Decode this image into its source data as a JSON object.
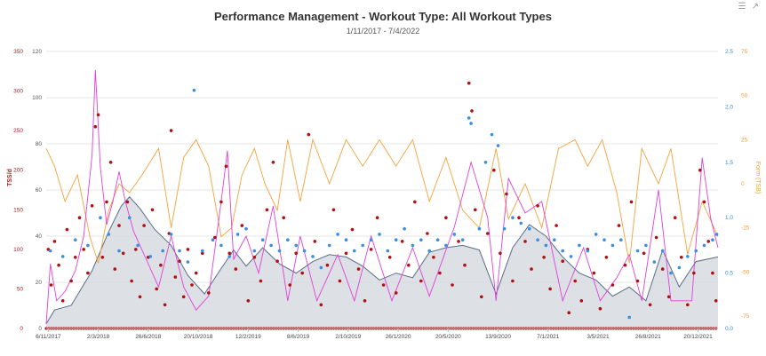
{
  "header": {
    "title": "Performance Management - Workout Type: All Workout Types",
    "subtitle": "1/11/2017 - 7/4/2022",
    "menu_icon": "hamburger-menu-icon",
    "expand_icon": "expand-icon"
  },
  "chart_data": {
    "type": "line",
    "title": "Performance Management - Workout Type: All Workout Types",
    "subtitle": "1/11/2017 - 7/4/2022",
    "x_ticks": [
      "6/11/2017",
      "2/3/2018",
      "26/6/2018",
      "20/10/2018",
      "12/2/2019",
      "8/6/2019",
      "2/10/2019",
      "26/1/2020",
      "20/5/2020",
      "13/9/2020",
      "7/1/2021",
      "3/5/2021",
      "26/8/2021",
      "20/12/2021"
    ],
    "axes": {
      "tss": {
        "label": "TSS/d",
        "min": 0,
        "max": 350,
        "ticks": [
          0,
          50,
          100,
          150,
          200,
          250,
          300,
          350
        ],
        "color": "#b22222"
      },
      "fitness": {
        "label": "",
        "min": 0,
        "max": 120,
        "ticks": [
          0,
          20,
          40,
          60,
          80,
          100,
          120
        ],
        "color": "#555555"
      },
      "if": {
        "label": "",
        "min": 0,
        "max": 2.5,
        "ticks": [
          "0.0",
          "0.5",
          "1.0",
          "1.5",
          "2.0",
          "2.5"
        ],
        "color": "#3b8fe0"
      },
      "form": {
        "label": "Form (TSB)",
        "min": -82,
        "max": 75,
        "ticks": [
          -75,
          -50,
          -25,
          0,
          25,
          50,
          75
        ],
        "color": "#f0a030"
      }
    },
    "series": [
      {
        "key": "tss",
        "kind": "scatter",
        "color": "#b01010"
      },
      {
        "key": "if",
        "kind": "scatter",
        "color": "#3b8fe0"
      },
      {
        "key": "form",
        "kind": "line",
        "color": "#f3a33a"
      },
      {
        "key": "fatigue",
        "kind": "line",
        "color": "#e040d8"
      },
      {
        "key": "fitness",
        "kind": "area",
        "color": "#5b6e8a",
        "fill": "#d2d6dc"
      }
    ],
    "grid": true,
    "legend": "none",
    "n_days": 1613,
    "values": {
      "fitness": [
        [
          0,
          2
        ],
        [
          20,
          8
        ],
        [
          60,
          10
        ],
        [
          110,
          25
        ],
        [
          150,
          42
        ],
        [
          180,
          53
        ],
        [
          200,
          57
        ],
        [
          225,
          52
        ],
        [
          260,
          43
        ],
        [
          300,
          36
        ],
        [
          340,
          23
        ],
        [
          380,
          15
        ],
        [
          420,
          26
        ],
        [
          450,
          34
        ],
        [
          480,
          27
        ],
        [
          520,
          35
        ],
        [
          560,
          28
        ],
        [
          600,
          24
        ],
        [
          640,
          29
        ],
        [
          680,
          32
        ],
        [
          720,
          31
        ],
        [
          760,
          27
        ],
        [
          800,
          21
        ],
        [
          840,
          24
        ],
        [
          880,
          22
        ],
        [
          920,
          33
        ],
        [
          960,
          35
        ],
        [
          1000,
          36
        ],
        [
          1040,
          34
        ],
        [
          1080,
          15
        ],
        [
          1120,
          35
        ],
        [
          1160,
          45
        ],
        [
          1200,
          40
        ],
        [
          1240,
          31
        ],
        [
          1280,
          24
        ],
        [
          1320,
          21
        ],
        [
          1360,
          14
        ],
        [
          1400,
          18
        ],
        [
          1440,
          12
        ],
        [
          1480,
          34
        ],
        [
          1520,
          18
        ],
        [
          1560,
          29
        ],
        [
          1613,
          31
        ]
      ],
      "fatigue": [
        [
          0,
          2
        ],
        [
          10,
          28
        ],
        [
          25,
          12
        ],
        [
          45,
          16
        ],
        [
          70,
          25
        ],
        [
          90,
          40
        ],
        [
          110,
          75
        ],
        [
          118,
          112
        ],
        [
          130,
          70
        ],
        [
          145,
          45
        ],
        [
          160,
          55
        ],
        [
          175,
          68
        ],
        [
          190,
          55
        ],
        [
          210,
          42
        ],
        [
          240,
          30
        ],
        [
          270,
          18
        ],
        [
          300,
          40
        ],
        [
          330,
          18
        ],
        [
          360,
          8
        ],
        [
          390,
          14
        ],
        [
          420,
          55
        ],
        [
          435,
          77
        ],
        [
          450,
          30
        ],
        [
          480,
          40
        ],
        [
          510,
          24
        ],
        [
          545,
          53
        ],
        [
          580,
          12
        ],
        [
          610,
          40
        ],
        [
          650,
          12
        ],
        [
          700,
          32
        ],
        [
          740,
          12
        ],
        [
          780,
          40
        ],
        [
          830,
          12
        ],
        [
          880,
          35
        ],
        [
          920,
          14
        ],
        [
          980,
          44
        ],
        [
          1020,
          72
        ],
        [
          1060,
          48
        ],
        [
          1080,
          12
        ],
        [
          1110,
          65
        ],
        [
          1150,
          50
        ],
        [
          1190,
          55
        ],
        [
          1240,
          12
        ],
        [
          1290,
          35
        ],
        [
          1330,
          12
        ],
        [
          1370,
          22
        ],
        [
          1400,
          32
        ],
        [
          1430,
          12
        ],
        [
          1470,
          60
        ],
        [
          1500,
          12
        ],
        [
          1550,
          12
        ],
        [
          1575,
          74
        ],
        [
          1595,
          48
        ],
        [
          1613,
          35
        ]
      ],
      "form": [
        [
          0,
          20
        ],
        [
          20,
          10
        ],
        [
          45,
          -10
        ],
        [
          75,
          5
        ],
        [
          105,
          -30
        ],
        [
          125,
          -45
        ],
        [
          150,
          -15
        ],
        [
          175,
          0
        ],
        [
          200,
          -5
        ],
        [
          230,
          5
        ],
        [
          270,
          20
        ],
        [
          300,
          -25
        ],
        [
          330,
          15
        ],
        [
          360,
          25
        ],
        [
          390,
          10
        ],
        [
          420,
          -30
        ],
        [
          445,
          -25
        ],
        [
          470,
          5
        ],
        [
          500,
          20
        ],
        [
          525,
          0
        ],
        [
          555,
          -15
        ],
        [
          580,
          25
        ],
        [
          610,
          -10
        ],
        [
          640,
          25
        ],
        [
          680,
          0
        ],
        [
          720,
          25
        ],
        [
          760,
          10
        ],
        [
          800,
          25
        ],
        [
          840,
          10
        ],
        [
          880,
          25
        ],
        [
          920,
          -10
        ],
        [
          960,
          15
        ],
        [
          1000,
          -15
        ],
        [
          1040,
          -25
        ],
        [
          1080,
          20
        ],
        [
          1110,
          -20
        ],
        [
          1150,
          0
        ],
        [
          1190,
          -25
        ],
        [
          1230,
          20
        ],
        [
          1270,
          25
        ],
        [
          1300,
          10
        ],
        [
          1335,
          25
        ],
        [
          1370,
          -5
        ],
        [
          1400,
          -45
        ],
        [
          1430,
          20
        ],
        [
          1470,
          0
        ],
        [
          1500,
          20
        ],
        [
          1540,
          -40
        ],
        [
          1575,
          -10
        ],
        [
          1613,
          -30
        ]
      ],
      "tss": [
        [
          5,
          100
        ],
        [
          12,
          55
        ],
        [
          20,
          110
        ],
        [
          30,
          80
        ],
        [
          40,
          35
        ],
        [
          50,
          125
        ],
        [
          60,
          60
        ],
        [
          70,
          90
        ],
        [
          80,
          140
        ],
        [
          90,
          100
        ],
        [
          100,
          70
        ],
        [
          110,
          155
        ],
        [
          118,
          255
        ],
        [
          125,
          270
        ],
        [
          135,
          90
        ],
        [
          145,
          160
        ],
        [
          155,
          210
        ],
        [
          165,
          75
        ],
        [
          175,
          130
        ],
        [
          185,
          95
        ],
        [
          195,
          160
        ],
        [
          205,
          60
        ],
        [
          215,
          100
        ],
        [
          225,
          40
        ],
        [
          235,
          130
        ],
        [
          245,
          90
        ],
        [
          255,
          150
        ],
        [
          265,
          50
        ],
        [
          275,
          80
        ],
        [
          285,
          30
        ],
        [
          295,
          120
        ],
        [
          300,
          250
        ],
        [
          310,
          65
        ],
        [
          320,
          85
        ],
        [
          330,
          40
        ],
        [
          340,
          100
        ],
        [
          350,
          55
        ],
        [
          360,
          70
        ],
        [
          375,
          95
        ],
        [
          390,
          45
        ],
        [
          405,
          115
        ],
        [
          420,
          160
        ],
        [
          432,
          205
        ],
        [
          440,
          95
        ],
        [
          455,
          75
        ],
        [
          470,
          130
        ],
        [
          485,
          35
        ],
        [
          500,
          90
        ],
        [
          515,
          60
        ],
        [
          530,
          150
        ],
        [
          545,
          210
        ],
        [
          555,
          85
        ],
        [
          570,
          140
        ],
        [
          585,
          55
        ],
        [
          600,
          95
        ],
        [
          615,
          70
        ],
        [
          630,
          245
        ],
        [
          645,
          110
        ],
        [
          660,
          30
        ],
        [
          675,
          80
        ],
        [
          690,
          150
        ],
        [
          705,
          60
        ],
        [
          720,
          95
        ],
        [
          735,
          125
        ],
        [
          750,
          75
        ],
        [
          765,
          35
        ],
        [
          780,
          100
        ],
        [
          795,
          140
        ],
        [
          810,
          55
        ],
        [
          825,
          90
        ],
        [
          840,
          45
        ],
        [
          855,
          110
        ],
        [
          870,
          80
        ],
        [
          885,
          160
        ],
        [
          900,
          60
        ],
        [
          915,
          120
        ],
        [
          930,
          90
        ],
        [
          945,
          70
        ],
        [
          960,
          140
        ],
        [
          975,
          55
        ],
        [
          990,
          110
        ],
        [
          1005,
          80
        ],
        [
          1015,
          310
        ],
        [
          1022,
          275
        ],
        [
          1030,
          150
        ],
        [
          1045,
          40
        ],
        [
          1060,
          120
        ],
        [
          1075,
          200
        ],
        [
          1090,
          95
        ],
        [
          1105,
          170
        ],
        [
          1120,
          60
        ],
        [
          1135,
          140
        ],
        [
          1150,
          110
        ],
        [
          1165,
          75
        ],
        [
          1180,
          155
        ],
        [
          1195,
          90
        ],
        [
          1210,
          50
        ],
        [
          1225,
          130
        ],
        [
          1240,
          85
        ],
        [
          1255,
          20
        ],
        [
          1270,
          60
        ],
        [
          1285,
          35
        ],
        [
          1300,
          100
        ],
        [
          1315,
          70
        ],
        [
          1330,
          25
        ],
        [
          1345,
          90
        ],
        [
          1360,
          55
        ],
        [
          1375,
          130
        ],
        [
          1390,
          80
        ],
        [
          1405,
          160
        ],
        [
          1420,
          60
        ],
        [
          1435,
          95
        ],
        [
          1450,
          30
        ],
        [
          1465,
          115
        ],
        [
          1480,
          75
        ],
        [
          1495,
          40
        ],
        [
          1510,
          140
        ],
        [
          1525,
          90
        ],
        [
          1540,
          30
        ],
        [
          1555,
          70
        ],
        [
          1570,
          200
        ],
        [
          1580,
          160
        ],
        [
          1590,
          110
        ],
        [
          1600,
          70
        ],
        [
          1608,
          35
        ]
      ],
      "tss_zero_days_marked": true,
      "if": [
        [
          10,
          0.7
        ],
        [
          40,
          0.65
        ],
        [
          70,
          0.8
        ],
        [
          100,
          0.75
        ],
        [
          130,
          1.0
        ],
        [
          150,
          0.85
        ],
        [
          175,
          0.7
        ],
        [
          200,
          1.0
        ],
        [
          220,
          0.75
        ],
        [
          250,
          0.65
        ],
        [
          280,
          0.7
        ],
        [
          300,
          0.85
        ],
        [
          320,
          0.7
        ],
        [
          340,
          0.6
        ],
        [
          355,
          2.15
        ],
        [
          375,
          0.7
        ],
        [
          400,
          0.8
        ],
        [
          420,
          0.75
        ],
        [
          440,
          0.65
        ],
        [
          460,
          0.85
        ],
        [
          480,
          0.9
        ],
        [
          500,
          0.7
        ],
        [
          520,
          0.8
        ],
        [
          540,
          0.75
        ],
        [
          560,
          0.7
        ],
        [
          580,
          0.8
        ],
        [
          600,
          0.75
        ],
        [
          620,
          0.7
        ],
        [
          640,
          0.65
        ],
        [
          660,
          0.55
        ],
        [
          680,
          0.75
        ],
        [
          700,
          0.85
        ],
        [
          720,
          0.8
        ],
        [
          740,
          0.7
        ],
        [
          760,
          0.75
        ],
        [
          780,
          0.8
        ],
        [
          800,
          0.85
        ],
        [
          820,
          0.7
        ],
        [
          840,
          0.8
        ],
        [
          860,
          0.9
        ],
        [
          880,
          0.75
        ],
        [
          900,
          0.8
        ],
        [
          920,
          0.7
        ],
        [
          940,
          0.8
        ],
        [
          960,
          0.75
        ],
        [
          980,
          0.85
        ],
        [
          1000,
          0.8
        ],
        [
          1015,
          1.9
        ],
        [
          1020,
          1.85
        ],
        [
          1040,
          0.9
        ],
        [
          1055,
          1.5
        ],
        [
          1070,
          1.75
        ],
        [
          1085,
          1.65
        ],
        [
          1100,
          0.9
        ],
        [
          1120,
          1.0
        ],
        [
          1140,
          0.95
        ],
        [
          1160,
          0.9
        ],
        [
          1180,
          0.8
        ],
        [
          1200,
          0.75
        ],
        [
          1220,
          0.8
        ],
        [
          1240,
          0.7
        ],
        [
          1260,
          0.65
        ],
        [
          1280,
          0.75
        ],
        [
          1300,
          0.7
        ],
        [
          1320,
          0.85
        ],
        [
          1340,
          0.8
        ],
        [
          1360,
          0.75
        ],
        [
          1380,
          0.8
        ],
        [
          1400,
          0.1
        ],
        [
          1420,
          0.7
        ],
        [
          1440,
          0.75
        ],
        [
          1460,
          0.6
        ],
        [
          1480,
          0.7
        ],
        [
          1500,
          0.5
        ],
        [
          1520,
          0.55
        ],
        [
          1540,
          0.65
        ],
        [
          1560,
          0.7
        ],
        [
          1580,
          0.75
        ],
        [
          1600,
          0.8
        ],
        [
          1610,
          0.85
        ]
      ]
    }
  }
}
